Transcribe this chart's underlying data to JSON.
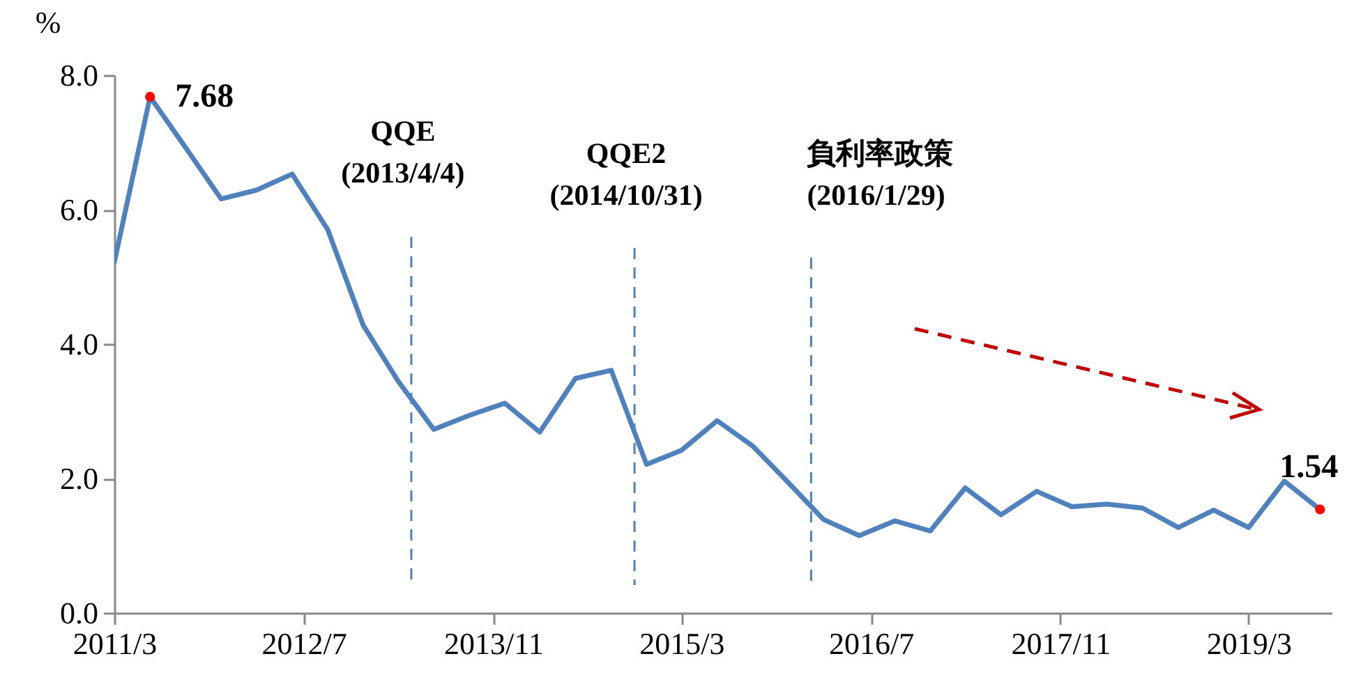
{
  "chart_data": {
    "type": "line",
    "ylabel": "%",
    "x": [
      "2011-03",
      "2011-06",
      "2011-09",
      "2011-12",
      "2012-03",
      "2012-06",
      "2012-09",
      "2012-12",
      "2013-03",
      "2013-06",
      "2013-09",
      "2013-12",
      "2014-03",
      "2014-06",
      "2014-09",
      "2014-12",
      "2015-03",
      "2015-06",
      "2015-09",
      "2015-12",
      "2016-03",
      "2016-06",
      "2016-09",
      "2016-12",
      "2017-03",
      "2017-06",
      "2017-09",
      "2017-12",
      "2018-03",
      "2018-06",
      "2018-09",
      "2018-12",
      "2019-03",
      "2019-06",
      "2019-09"
    ],
    "series": [
      {
        "color": "#4f81bd",
        "values": [
          5.22,
          7.68,
          6.92,
          6.16,
          6.29,
          6.53,
          5.7,
          4.28,
          3.45,
          2.73,
          2.94,
          3.12,
          2.69,
          3.49,
          3.61,
          2.21,
          2.42,
          2.86,
          2.48,
          1.94,
          1.39,
          1.15,
          1.37,
          1.22,
          1.86,
          1.46,
          1.81,
          1.58,
          1.62,
          1.56,
          1.27,
          1.53,
          1.27,
          1.96,
          1.54
        ]
      }
    ],
    "xlim": [
      "2011-03",
      "2019-10"
    ],
    "xticks": [
      {
        "value": "2011-03",
        "label": "2011/3"
      },
      {
        "value": "2012-07",
        "label": "2012/7"
      },
      {
        "value": "2013-11",
        "label": "2013/11"
      },
      {
        "value": "2015-03",
        "label": "2015/3"
      },
      {
        "value": "2016-07",
        "label": "2016/7"
      },
      {
        "value": "2017-11",
        "label": "2017/11"
      },
      {
        "value": "2019-03",
        "label": "2019/3"
      }
    ],
    "ylim": [
      0,
      8
    ],
    "yticks": [
      {
        "value": 0,
        "label": "0.0"
      },
      {
        "value": 2,
        "label": "2.0"
      },
      {
        "value": 4,
        "label": "4.0"
      },
      {
        "value": 6,
        "label": "6.0"
      },
      {
        "value": 8,
        "label": "8.0"
      }
    ],
    "ref_lines": [
      {
        "axis": "x",
        "value": "2013-04-04",
        "label": "QQE\n(2013/4/4)",
        "color": "#4f81bd",
        "line_style": "dashed"
      },
      {
        "axis": "x",
        "value": "2014-10-31",
        "label": "QQE2\n(2014/10/31)",
        "color": "#4f81bd",
        "line_style": "dashed"
      },
      {
        "axis": "x",
        "value": "2016-01-29",
        "label": "負利率政策\n(2016/1/29)",
        "color": "#4f81bd",
        "line_style": "dashed"
      }
    ],
    "annotations": [
      {
        "text": "7.68",
        "x": "2011-06",
        "y": 7.68
      },
      {
        "text": "1.54",
        "x": "2019-09",
        "y": 1.54
      }
    ],
    "grid": false,
    "marker": "none",
    "line_style": "solid"
  }
}
